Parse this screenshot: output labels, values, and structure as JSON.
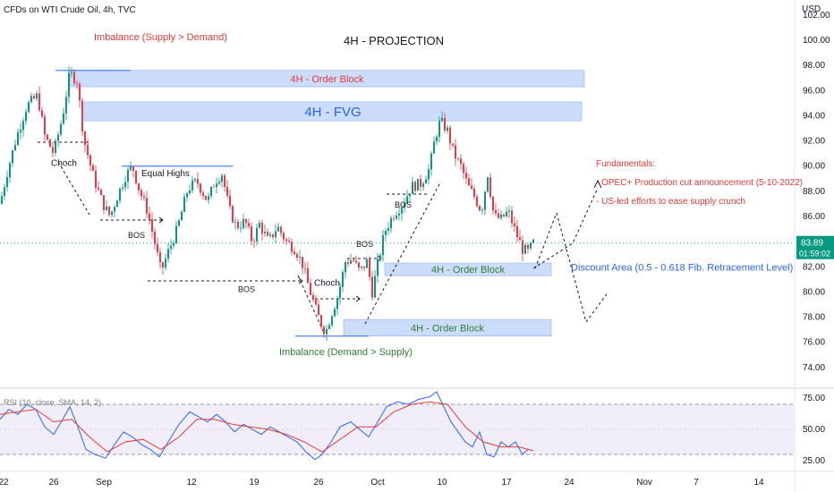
{
  "header": {
    "symbol": "CFDs on WTI Crude Oil, 4h, TVC",
    "currency": "USD"
  },
  "chart_data": {
    "type": "candlestick",
    "title": "4H - PROJECTION",
    "price_axis": {
      "ticks": [
        102.0,
        100.0,
        98.0,
        96.0,
        94.0,
        92.0,
        90.0,
        88.0,
        86.0,
        84.0,
        82.0,
        80.0,
        78.0,
        76.0,
        74.0
      ],
      "range": [
        72.5,
        102.2
      ]
    },
    "time_axis": {
      "labels": [
        "22",
        "26",
        "Sep",
        "12",
        "19",
        "26",
        "Oct",
        "10",
        "17",
        "24",
        "Nov",
        "7",
        "14"
      ]
    },
    "last_price": {
      "value": "83.89",
      "countdown": "01:59:02",
      "color": "#089981"
    },
    "price_path": [
      [
        0,
        87.0
      ],
      [
        8,
        89.5
      ],
      [
        18,
        92.2
      ],
      [
        30,
        94.8
      ],
      [
        42,
        95.6
      ],
      [
        50,
        92.4
      ],
      [
        60,
        91.0
      ],
      [
        70,
        94.0
      ],
      [
        78,
        97.4
      ],
      [
        86,
        96.8
      ],
      [
        94,
        92.0
      ],
      [
        105,
        89.0
      ],
      [
        115,
        87.0
      ],
      [
        123,
        86.0
      ],
      [
        130,
        87.4
      ],
      [
        140,
        89.2
      ],
      [
        148,
        90.0
      ],
      [
        156,
        88.0
      ],
      [
        165,
        86.4
      ],
      [
        172,
        84.2
      ],
      [
        180,
        81.6
      ],
      [
        188,
        83.2
      ],
      [
        198,
        85.0
      ],
      [
        210,
        88.2
      ],
      [
        220,
        88.8
      ],
      [
        232,
        87.2
      ],
      [
        240,
        88.8
      ],
      [
        248,
        89.4
      ],
      [
        256,
        86.6
      ],
      [
        264,
        85.2
      ],
      [
        274,
        85.6
      ],
      [
        282,
        84.0
      ],
      [
        290,
        85.4
      ],
      [
        300,
        84.0
      ],
      [
        310,
        85.2
      ],
      [
        320,
        84.0
      ],
      [
        330,
        83.4
      ],
      [
        338,
        82.2
      ],
      [
        345,
        80.4
      ],
      [
        352,
        78.8
      ],
      [
        358,
        77.6
      ],
      [
        364,
        76.8
      ],
      [
        370,
        78.2
      ],
      [
        378,
        79.8
      ],
      [
        386,
        82.4
      ],
      [
        394,
        82.6
      ],
      [
        402,
        81.6
      ],
      [
        410,
        82.4
      ],
      [
        416,
        80.0
      ],
      [
        422,
        82.2
      ],
      [
        430,
        84.8
      ],
      [
        440,
        86.2
      ],
      [
        450,
        87.0
      ],
      [
        460,
        88.4
      ],
      [
        470,
        88.6
      ],
      [
        480,
        89.8
      ],
      [
        486,
        92.2
      ],
      [
        492,
        93.6
      ],
      [
        500,
        92.8
      ],
      [
        507,
        91.0
      ],
      [
        515,
        90.0
      ],
      [
        523,
        88.4
      ],
      [
        530,
        87.6
      ],
      [
        538,
        86.4
      ],
      [
        545,
        89.4
      ],
      [
        552,
        86.0
      ],
      [
        560,
        85.8
      ],
      [
        568,
        86.4
      ],
      [
        576,
        84.8
      ],
      [
        584,
        83.4
      ],
      [
        590,
        83.2
      ],
      [
        596,
        83.9
      ]
    ],
    "rsi": {
      "label": "RSI (10, close, SMA, 14, 2)",
      "ticks": [
        75.0,
        50.0,
        25.0
      ],
      "upper": 70,
      "lower": 30,
      "range": [
        20,
        80
      ],
      "rsi_line": [
        [
          0,
          58
        ],
        [
          10,
          66
        ],
        [
          20,
          62
        ],
        [
          30,
          70
        ],
        [
          40,
          66
        ],
        [
          50,
          52
        ],
        [
          60,
          46
        ],
        [
          70,
          58
        ],
        [
          78,
          68
        ],
        [
          86,
          54
        ],
        [
          96,
          34
        ],
        [
          106,
          30
        ],
        [
          118,
          27
        ],
        [
          128,
          38
        ],
        [
          138,
          48
        ],
        [
          148,
          44
        ],
        [
          158,
          38
        ],
        [
          168,
          34
        ],
        [
          178,
          28
        ],
        [
          188,
          40
        ],
        [
          200,
          54
        ],
        [
          212,
          64
        ],
        [
          222,
          60
        ],
        [
          232,
          56
        ],
        [
          242,
          62
        ],
        [
          252,
          56
        ],
        [
          262,
          48
        ],
        [
          272,
          54
        ],
        [
          282,
          50
        ],
        [
          292,
          46
        ],
        [
          302,
          52
        ],
        [
          312,
          48
        ],
        [
          322,
          44
        ],
        [
          332,
          40
        ],
        [
          342,
          32
        ],
        [
          352,
          26
        ],
        [
          360,
          30
        ],
        [
          370,
          40
        ],
        [
          380,
          52
        ],
        [
          392,
          56
        ],
        [
          402,
          50
        ],
        [
          412,
          44
        ],
        [
          422,
          56
        ],
        [
          432,
          68
        ],
        [
          444,
          72
        ],
        [
          456,
          70
        ],
        [
          468,
          74
        ],
        [
          480,
          76
        ],
        [
          488,
          80
        ],
        [
          496,
          68
        ],
        [
          504,
          56
        ],
        [
          512,
          48
        ],
        [
          520,
          40
        ],
        [
          528,
          36
        ],
        [
          536,
          48
        ],
        [
          544,
          30
        ],
        [
          552,
          28
        ],
        [
          560,
          40
        ],
        [
          568,
          36
        ],
        [
          576,
          40
        ],
        [
          584,
          30
        ],
        [
          590,
          34
        ],
        [
          596,
          33
        ]
      ],
      "sma_line": [
        [
          0,
          62
        ],
        [
          20,
          64
        ],
        [
          40,
          66
        ],
        [
          60,
          56
        ],
        [
          80,
          58
        ],
        [
          100,
          44
        ],
        [
          120,
          32
        ],
        [
          140,
          40
        ],
        [
          160,
          42
        ],
        [
          180,
          34
        ],
        [
          200,
          44
        ],
        [
          220,
          58
        ],
        [
          240,
          58
        ],
        [
          260,
          54
        ],
        [
          280,
          52
        ],
        [
          300,
          50
        ],
        [
          320,
          46
        ],
        [
          340,
          40
        ],
        [
          360,
          32
        ],
        [
          380,
          42
        ],
        [
          400,
          52
        ],
        [
          420,
          52
        ],
        [
          440,
          64
        ],
        [
          460,
          70
        ],
        [
          480,
          72
        ],
        [
          500,
          70
        ],
        [
          520,
          52
        ],
        [
          540,
          40
        ],
        [
          560,
          36
        ],
        [
          580,
          36
        ],
        [
          596,
          33
        ]
      ]
    },
    "zones": [
      {
        "label": "4H - Order Block",
        "top": 97.6,
        "bottom": 96.3,
        "start": 78,
        "end": 653,
        "text_color": "#e53935",
        "font_size": 11
      },
      {
        "label": "4H - FVG",
        "top": 95.1,
        "bottom": 93.6,
        "start": 94,
        "end": 650,
        "text_color": "#2962ff",
        "font_size": 15
      },
      {
        "label": "4H - Order Block",
        "top": 82.3,
        "bottom": 81.3,
        "start": 430,
        "end": 616,
        "text_color": "#2e7d32",
        "font_size": 11
      },
      {
        "label": "4H - Order Block",
        "top": 77.8,
        "bottom": 76.5,
        "start": 384,
        "end": 616,
        "text_color": "#2e7d32",
        "font_size": 11
      }
    ],
    "annotations": [
      {
        "text": "Imbalance (Supply > Demand)",
        "color": "#e53935",
        "x": 105,
        "price": 100.0,
        "size": 11
      },
      {
        "text": "Equal Highs",
        "color": "#131722",
        "x": 158,
        "price": 89.2,
        "size": 10
      },
      {
        "text": "Choch",
        "color": "#131722",
        "x": 57,
        "price": 90.0,
        "size": 10
      },
      {
        "text": "BOS",
        "color": "#131722",
        "x": 143,
        "price": 84.3,
        "size": 9
      },
      {
        "text": "BOS",
        "color": "#131722",
        "x": 266,
        "price": 80.0,
        "size": 9
      },
      {
        "text": "Choch",
        "color": "#131722",
        "x": 351,
        "price": 80.5,
        "size": 10
      },
      {
        "text": "BOS",
        "color": "#131722",
        "x": 398,
        "price": 83.6,
        "size": 9
      },
      {
        "text": "BOS",
        "color": "#131722",
        "x": 441,
        "price": 86.7,
        "size": 9
      },
      {
        "text": "Imbalance (Demand > Supply)",
        "color": "#2e7d32",
        "x": 312,
        "price": 75.0,
        "size": 11
      },
      {
        "text": "Discount Area (0.5 - 0.618 Fib. Retracement Level)",
        "color": "#2962ff",
        "x": 638,
        "price": 81.7,
        "size": 11
      }
    ],
    "fundamentals": {
      "title": "Fundamentals:",
      "items": [
        "- OPEC+ Production cut announcement (5-10-2022)",
        "- US-led efforts to ease supply crunch"
      ],
      "color": "#e53935"
    }
  }
}
